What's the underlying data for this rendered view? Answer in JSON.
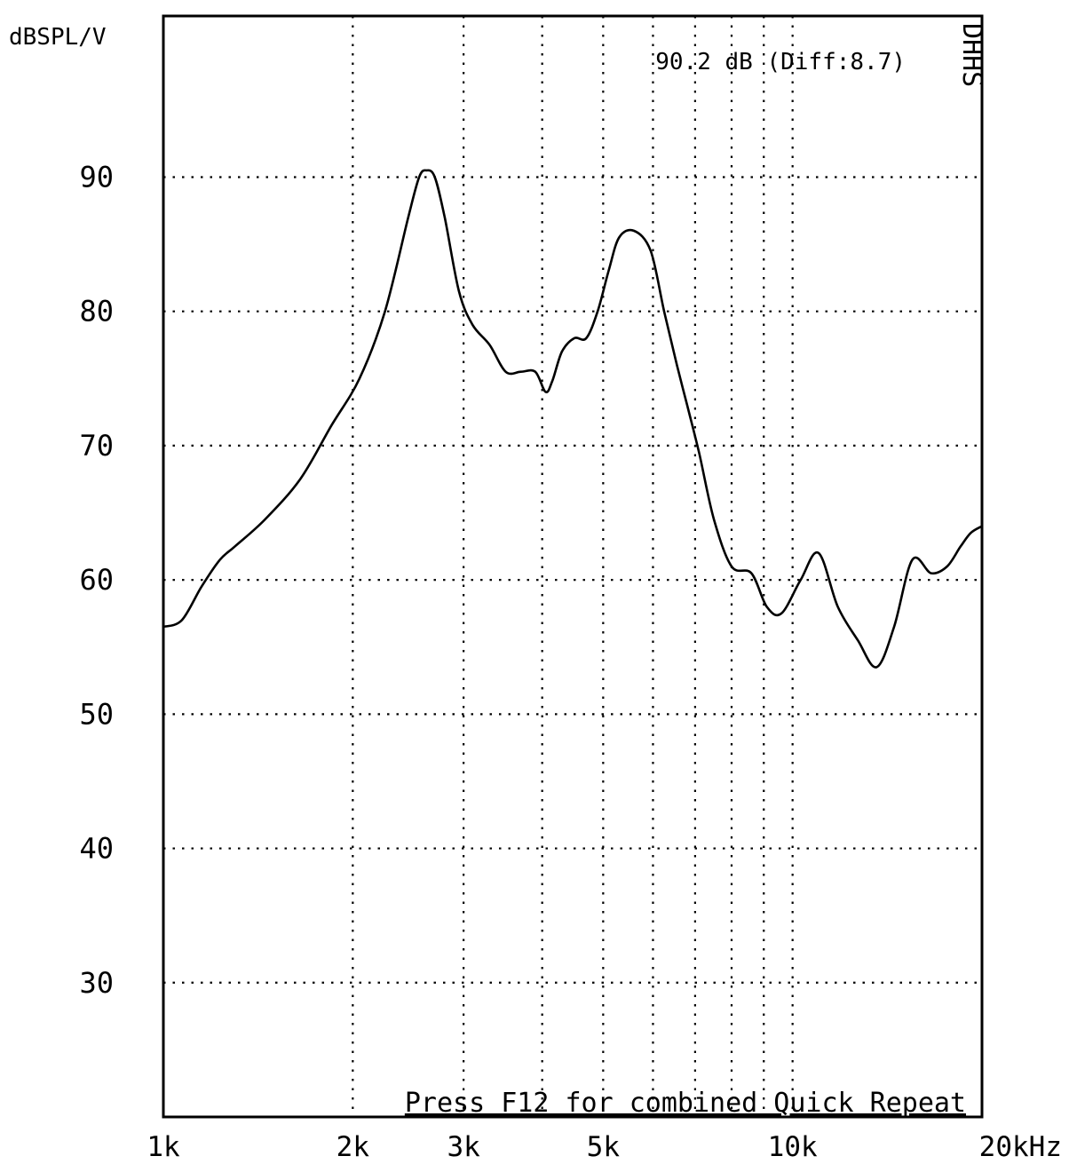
{
  "chart_data": {
    "type": "line",
    "ylabel": "dBSPL/V",
    "readout": "90.2 dB (Diff:8.7)",
    "corner_label": "DHHS",
    "footer_text": "Press F12 for combined Quick Repeat",
    "x_scale": "log",
    "xlim": [
      1000,
      20000
    ],
    "ylim": [
      20,
      102
    ],
    "grid": true,
    "x_ticks": [
      {
        "value": 1000,
        "label": "1k"
      },
      {
        "value": 2000,
        "label": "2k"
      },
      {
        "value": 3000,
        "label": "3k"
      },
      {
        "value": 5000,
        "label": "5k"
      },
      {
        "value": 10000,
        "label": "10k"
      },
      {
        "value": 20000,
        "label": "20kHz"
      }
    ],
    "x_gridlines": [
      2000,
      3000,
      4000,
      5000,
      6000,
      7000,
      8000,
      9000,
      10000
    ],
    "y_ticks": [
      {
        "value": 90,
        "label": "90"
      },
      {
        "value": 80,
        "label": "80"
      },
      {
        "value": 70,
        "label": "70"
      },
      {
        "value": 60,
        "label": "60"
      },
      {
        "value": 50,
        "label": "50"
      },
      {
        "value": 40,
        "label": "40"
      },
      {
        "value": 30,
        "label": "30"
      }
    ],
    "series": [
      {
        "color": "#000000",
        "x": [
          1000,
          1070,
          1150,
          1230,
          1300,
          1450,
          1650,
          1850,
          2050,
          2250,
          2450,
          2550,
          2620,
          2700,
          2800,
          2950,
          3100,
          3300,
          3500,
          3700,
          3900,
          4050,
          4150,
          4300,
          4500,
          4700,
          4900,
          5100,
          5300,
          5600,
          5950,
          6250,
          6550,
          6800,
          7100,
          7500,
          8000,
          8600,
          9100,
          9600,
          10300,
          11000,
          11800,
          12700,
          13600,
          14500,
          15500,
          16600,
          17600,
          18500,
          19200,
          20000
        ],
        "y": [
          56.5,
          57,
          59.5,
          61.5,
          62.5,
          64.5,
          67.5,
          71.5,
          75,
          80,
          87,
          90,
          90.5,
          90,
          87,
          81.5,
          79,
          77.5,
          75.5,
          75.5,
          75.5,
          74,
          74.8,
          77,
          78,
          78,
          80,
          83,
          85.5,
          86,
          84.5,
          80,
          76,
          73,
          69.5,
          64.5,
          61,
          60.5,
          58,
          57.5,
          60,
          62,
          58,
          55.5,
          53.5,
          56.5,
          61.5,
          60.5,
          61,
          62.5,
          63.5,
          64
        ]
      }
    ]
  }
}
